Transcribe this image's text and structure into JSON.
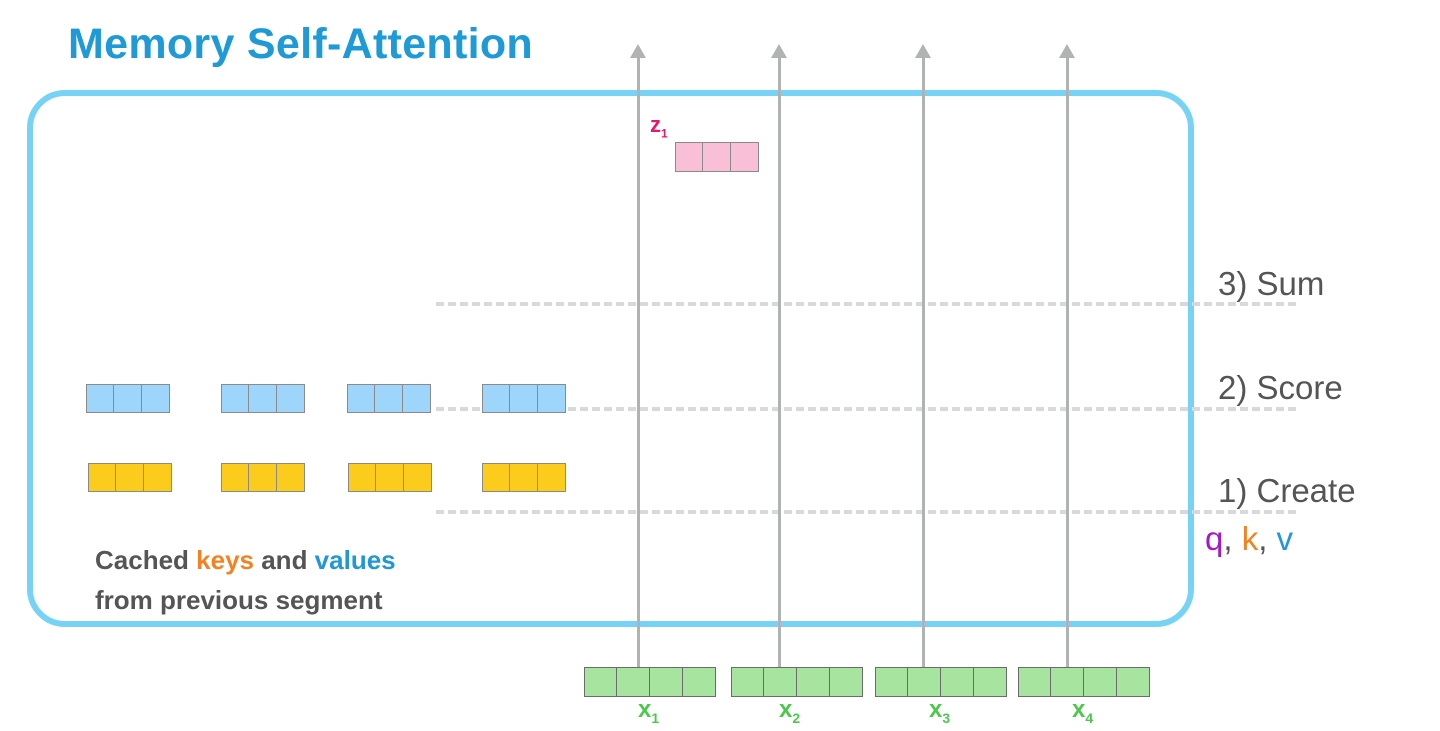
{
  "title": "Memory Self-Attention",
  "output": {
    "label": "z",
    "subscript": "1"
  },
  "stages": [
    {
      "label": "3) Sum"
    },
    {
      "label": "2) Score"
    },
    {
      "label": "1) Create"
    }
  ],
  "qkv": {
    "q": "q",
    "sep1": ", ",
    "k": "k",
    "sep2": ", ",
    "v": "v"
  },
  "caption": {
    "prefix": "Cached ",
    "keys": "keys",
    "middle": " and ",
    "values": "values",
    "line2": "from previous segment"
  },
  "inputs": [
    {
      "label": "x",
      "subscript": "1"
    },
    {
      "label": "x",
      "subscript": "2"
    },
    {
      "label": "x",
      "subscript": "3"
    },
    {
      "label": "x",
      "subscript": "4"
    }
  ],
  "colors": {
    "title": "#1e9ad6",
    "frame": "#77d3f5",
    "value_vector": "#9ed6fb",
    "key_vector": "#fccc1c",
    "output_vector": "#f9bfd6",
    "input_vector": "#a6e4a0",
    "q": "#a318c9",
    "k": "#f58220",
    "v": "#2297d6",
    "arrow": "#b0b2b4"
  }
}
